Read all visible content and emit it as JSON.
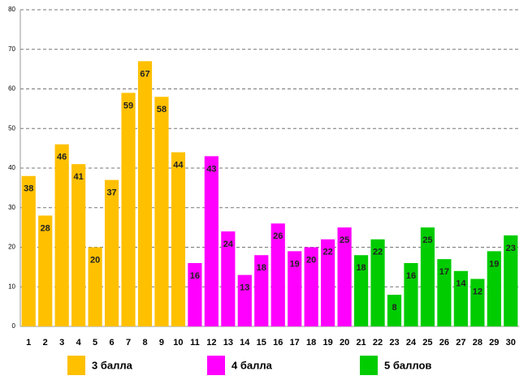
{
  "chart_data": {
    "type": "bar",
    "categories": [
      "1",
      "2",
      "3",
      "4",
      "5",
      "6",
      "7",
      "8",
      "9",
      "10",
      "11",
      "12",
      "13",
      "14",
      "15",
      "16",
      "17",
      "18",
      "19",
      "20",
      "21",
      "22",
      "23",
      "24",
      "25",
      "26",
      "27",
      "28",
      "29",
      "30"
    ],
    "series": [
      {
        "name": "3 балла",
        "color": "#ffc000",
        "values": [
          38,
          28,
          46,
          41,
          20,
          37,
          59,
          67,
          58,
          44,
          null,
          null,
          null,
          null,
          null,
          null,
          null,
          null,
          null,
          null,
          null,
          null,
          null,
          null,
          null,
          null,
          null,
          null,
          null,
          null
        ]
      },
      {
        "name": "4 балла",
        "color": "#ff00ff",
        "values": [
          null,
          null,
          null,
          null,
          null,
          null,
          null,
          null,
          null,
          null,
          16,
          43,
          24,
          13,
          18,
          26,
          19,
          20,
          22,
          25,
          null,
          null,
          null,
          null,
          null,
          null,
          null,
          null,
          null,
          null
        ]
      },
      {
        "name": "5 баллов",
        "color": "#00cc00",
        "values": [
          null,
          null,
          null,
          null,
          null,
          null,
          null,
          null,
          null,
          null,
          null,
          null,
          null,
          null,
          null,
          null,
          null,
          null,
          null,
          null,
          18,
          22,
          8,
          16,
          25,
          17,
          14,
          12,
          19,
          23
        ]
      }
    ],
    "ylim": [
      0,
      80
    ],
    "yticks": [
      0,
      10,
      20,
      30,
      40,
      50,
      60,
      70,
      80
    ],
    "grid": true,
    "legend": "bottom"
  }
}
